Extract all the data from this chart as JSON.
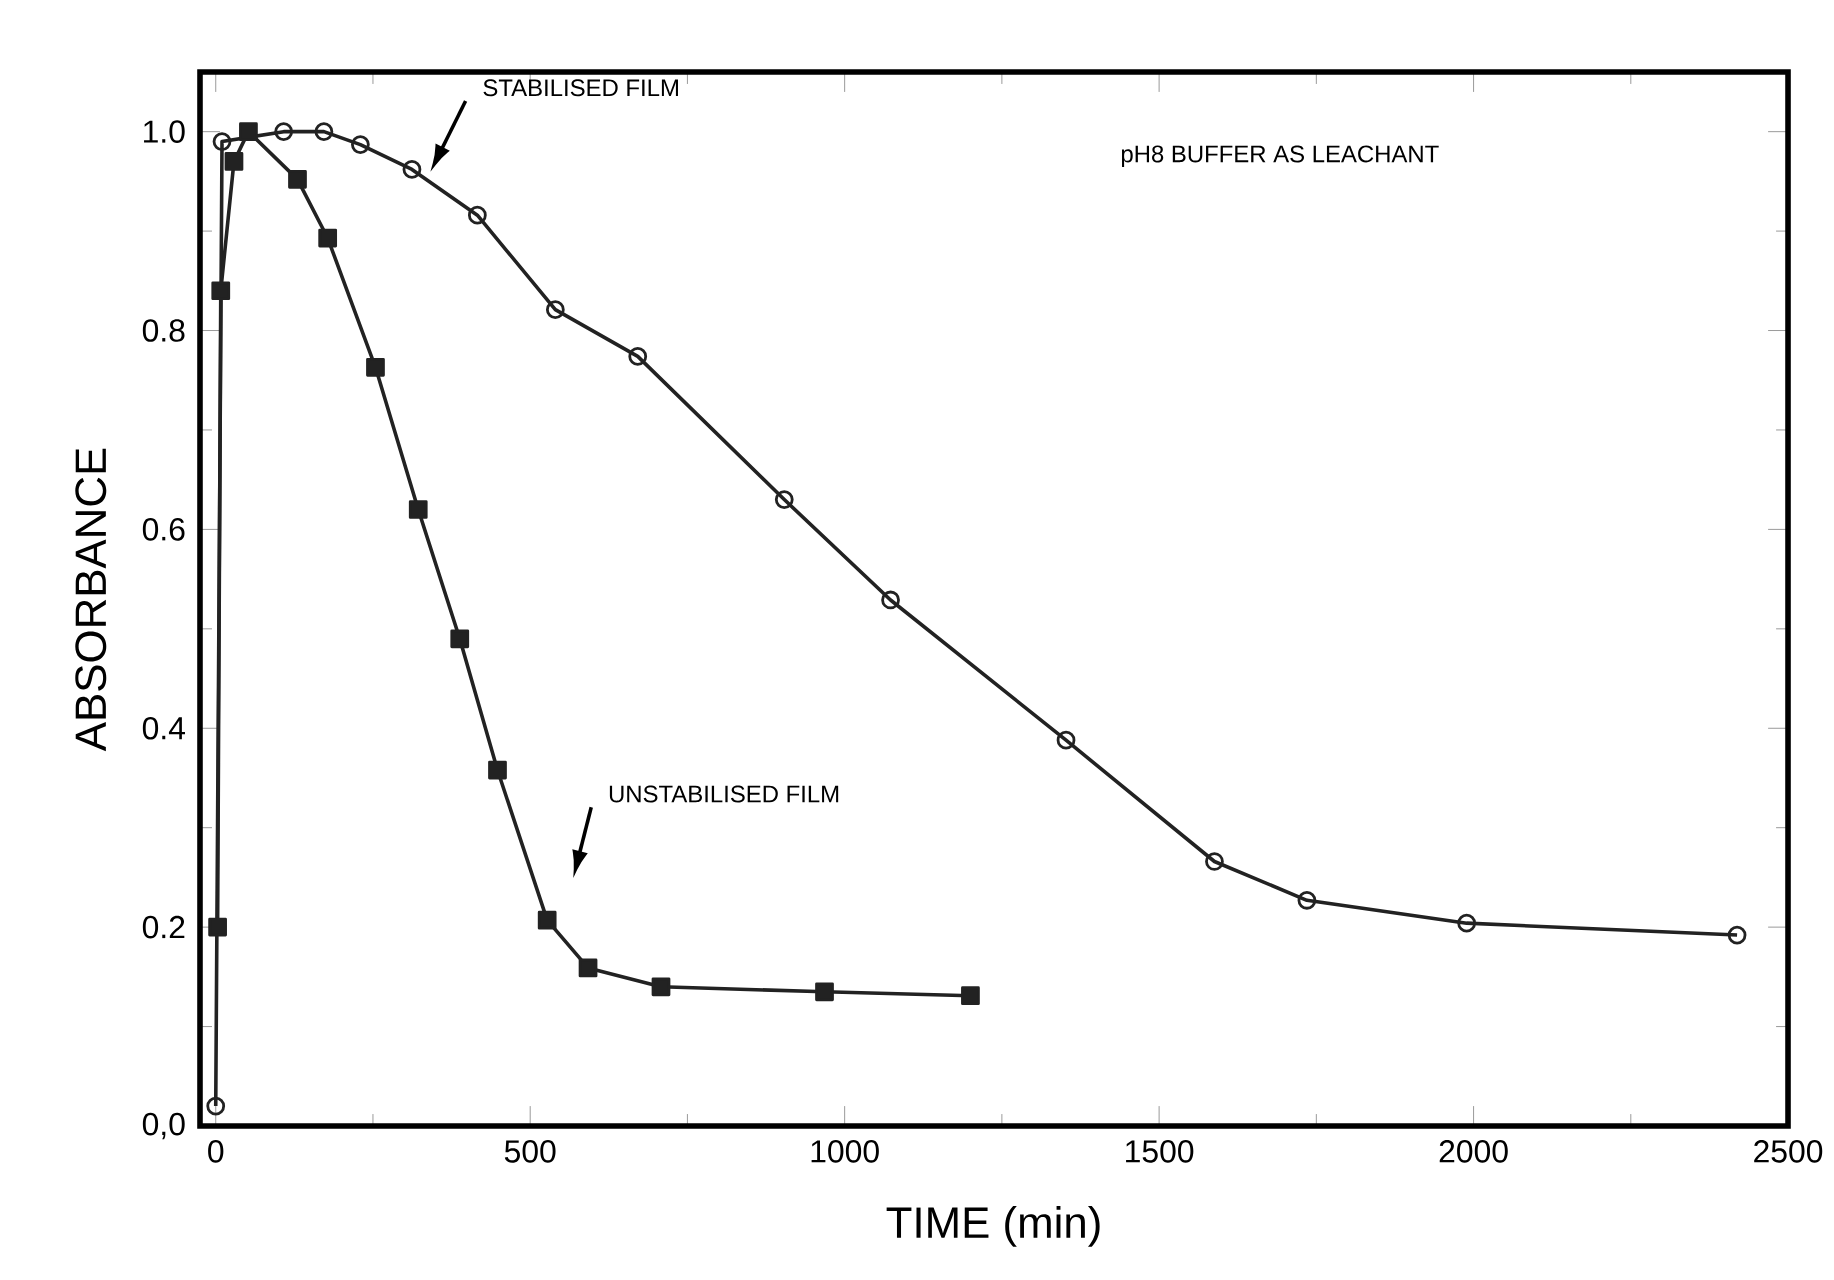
{
  "chart_data": {
    "type": "line",
    "xlabel": "TIME (min)",
    "ylabel": "ABSORBANCE",
    "xlim": [
      -25,
      2500
    ],
    "ylim": [
      0,
      1.06
    ],
    "xticks": [
      0,
      500,
      1000,
      1500,
      2000,
      2500
    ],
    "yticks": [
      {
        "value": 0,
        "label": "0,0"
      },
      {
        "value": 0.2,
        "label": "0.2"
      },
      {
        "value": 0.4,
        "label": "0.4"
      },
      {
        "value": 0.6,
        "label": "0.6"
      },
      {
        "value": 0.8,
        "label": "0.8"
      },
      {
        "value": 1.0,
        "label": "1.0"
      }
    ],
    "line_style": "solid",
    "series": [
      {
        "color": "#222222",
        "marker": "circle",
        "x": [
          0,
          10,
          108,
          172,
          230,
          312,
          416,
          540,
          671,
          904,
          1073,
          1352,
          1588,
          1735,
          1989,
          2419
        ],
        "values": [
          0.02,
          0.99,
          1.0,
          1.0,
          0.987,
          0.962,
          0.916,
          0.821,
          0.774,
          0.63,
          0.529,
          0.388,
          0.266,
          0.227,
          0.204,
          0.192
        ]
      },
      {
        "color": "#222222",
        "marker": "square",
        "x": [
          3,
          8,
          29,
          52,
          130,
          178,
          254,
          322,
          388,
          448,
          527,
          592,
          708,
          968,
          1200
        ],
        "values": [
          0.2,
          0.84,
          0.97,
          1.0,
          0.952,
          0.893,
          0.763,
          0.62,
          0.49,
          0.358,
          0.207,
          0.159,
          0.14,
          0.135,
          0.131
        ]
      }
    ],
    "annotations": [
      "STABILISED FILM",
      "UNSTABILISED FILM",
      "pH8 BUFFER AS LEACHANT"
    ]
  }
}
